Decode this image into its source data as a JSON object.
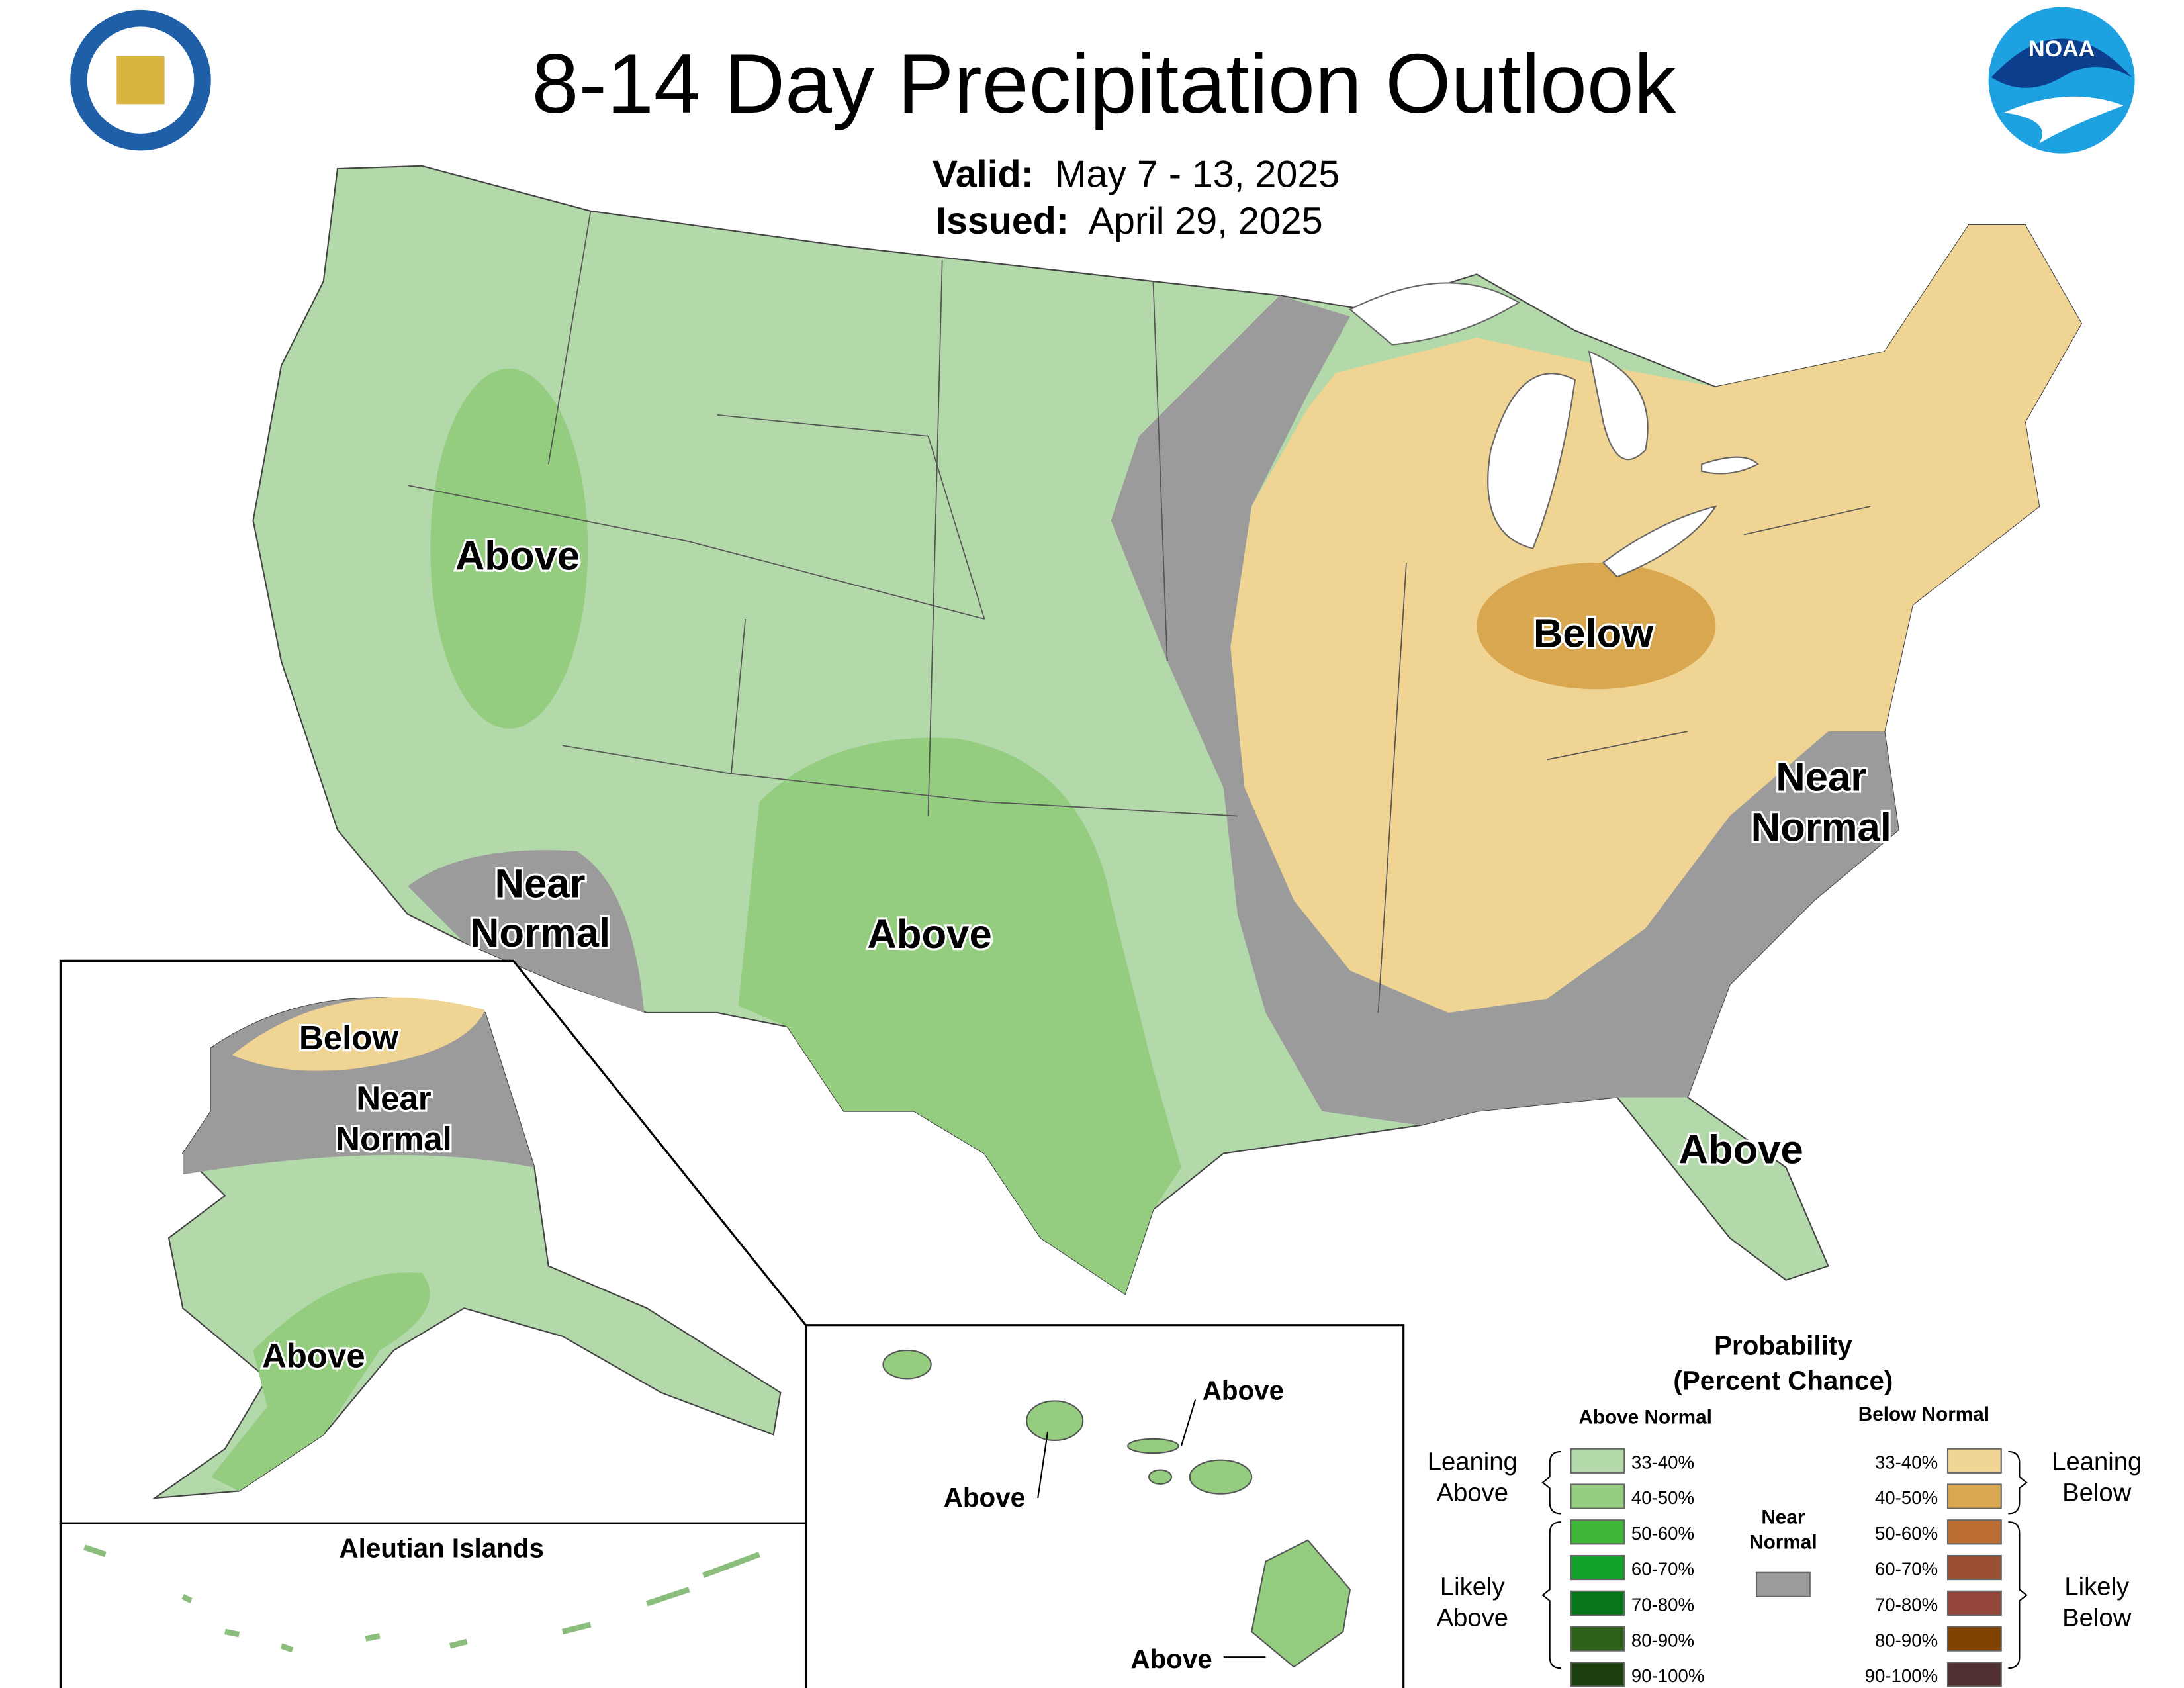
{
  "header": {
    "title": "8-14 Day Precipitation Outlook",
    "valid_label": "Valid:",
    "valid": "May 7 - 13, 2025",
    "issued_label": "Issued:",
    "issued": "April 29, 2025"
  },
  "conus": {
    "labels": [
      "Above",
      "Near",
      "Normal",
      "Above",
      "Below",
      "Near",
      "Normal",
      "Above"
    ]
  },
  "alaska": {
    "labels": [
      "Below",
      "Near",
      "Normal",
      "Above"
    ]
  },
  "aleutians": {
    "title": "Aleutian Islands"
  },
  "hawaii": {
    "labels": [
      "Above",
      "Above",
      "Above"
    ]
  },
  "legend": {
    "title": "Probability",
    "subtitle": "(Percent Chance)",
    "above_header": "Above Normal",
    "below_header": "Below Normal",
    "above": [
      {
        "label": "33-40%",
        "color": "#b3d9aa"
      },
      {
        "label": "40-50%",
        "color": "#94cd7f"
      },
      {
        "label": "50-60%",
        "color": "#3fb53a"
      },
      {
        "label": "60-70%",
        "color": "#12a12a"
      },
      {
        "label": "70-80%",
        "color": "#08771c"
      },
      {
        "label": "80-90%",
        "color": "#2b6018"
      },
      {
        "label": "90-100%",
        "color": "#1d4011"
      }
    ],
    "below": [
      {
        "label": "33-40%",
        "color": "#f0d493"
      },
      {
        "label": "40-50%",
        "color": "#d8a750"
      },
      {
        "label": "50-60%",
        "color": "#bb6d33"
      },
      {
        "label": "60-70%",
        "color": "#9b5131"
      },
      {
        "label": "70-80%",
        "color": "#934639"
      },
      {
        "label": "80-90%",
        "color": "#804000"
      },
      {
        "label": "90-100%",
        "color": "#4f2f2f"
      }
    ],
    "near": {
      "lines": [
        "Near",
        "Normal"
      ],
      "color": "#9b9b9b"
    },
    "leaning_above": [
      "Leaning",
      "Above"
    ],
    "likely_above": [
      "Likely",
      "Above"
    ],
    "leaning_below": [
      "Leaning",
      "Below"
    ],
    "likely_below": [
      "Likely",
      "Below"
    ]
  }
}
